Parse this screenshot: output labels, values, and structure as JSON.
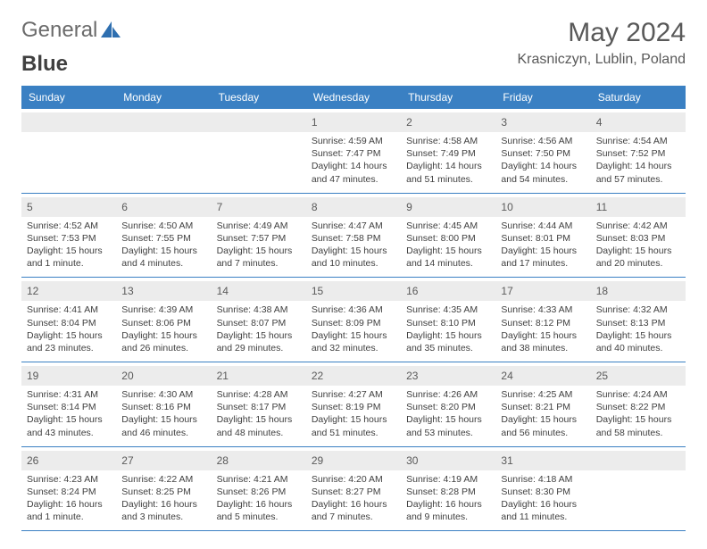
{
  "logo": {
    "text1": "General",
    "text2": "Blue"
  },
  "title": "May 2024",
  "location": "Krasniczyn, Lublin, Poland",
  "day_names": [
    "Sunday",
    "Monday",
    "Tuesday",
    "Wednesday",
    "Thursday",
    "Friday",
    "Saturday"
  ],
  "colors": {
    "header_bg": "#3a80c3",
    "header_text": "#ffffff",
    "daynum_bg": "#ececec",
    "border": "#3a80c3",
    "body_text": "#404040",
    "title_text": "#595959"
  },
  "weeks": [
    [
      {
        "n": "",
        "sr": "",
        "ss": "",
        "dl": ""
      },
      {
        "n": "",
        "sr": "",
        "ss": "",
        "dl": ""
      },
      {
        "n": "",
        "sr": "",
        "ss": "",
        "dl": ""
      },
      {
        "n": "1",
        "sr": "Sunrise: 4:59 AM",
        "ss": "Sunset: 7:47 PM",
        "dl": "Daylight: 14 hours and 47 minutes."
      },
      {
        "n": "2",
        "sr": "Sunrise: 4:58 AM",
        "ss": "Sunset: 7:49 PM",
        "dl": "Daylight: 14 hours and 51 minutes."
      },
      {
        "n": "3",
        "sr": "Sunrise: 4:56 AM",
        "ss": "Sunset: 7:50 PM",
        "dl": "Daylight: 14 hours and 54 minutes."
      },
      {
        "n": "4",
        "sr": "Sunrise: 4:54 AM",
        "ss": "Sunset: 7:52 PM",
        "dl": "Daylight: 14 hours and 57 minutes."
      }
    ],
    [
      {
        "n": "5",
        "sr": "Sunrise: 4:52 AM",
        "ss": "Sunset: 7:53 PM",
        "dl": "Daylight: 15 hours and 1 minute."
      },
      {
        "n": "6",
        "sr": "Sunrise: 4:50 AM",
        "ss": "Sunset: 7:55 PM",
        "dl": "Daylight: 15 hours and 4 minutes."
      },
      {
        "n": "7",
        "sr": "Sunrise: 4:49 AM",
        "ss": "Sunset: 7:57 PM",
        "dl": "Daylight: 15 hours and 7 minutes."
      },
      {
        "n": "8",
        "sr": "Sunrise: 4:47 AM",
        "ss": "Sunset: 7:58 PM",
        "dl": "Daylight: 15 hours and 10 minutes."
      },
      {
        "n": "9",
        "sr": "Sunrise: 4:45 AM",
        "ss": "Sunset: 8:00 PM",
        "dl": "Daylight: 15 hours and 14 minutes."
      },
      {
        "n": "10",
        "sr": "Sunrise: 4:44 AM",
        "ss": "Sunset: 8:01 PM",
        "dl": "Daylight: 15 hours and 17 minutes."
      },
      {
        "n": "11",
        "sr": "Sunrise: 4:42 AM",
        "ss": "Sunset: 8:03 PM",
        "dl": "Daylight: 15 hours and 20 minutes."
      }
    ],
    [
      {
        "n": "12",
        "sr": "Sunrise: 4:41 AM",
        "ss": "Sunset: 8:04 PM",
        "dl": "Daylight: 15 hours and 23 minutes."
      },
      {
        "n": "13",
        "sr": "Sunrise: 4:39 AM",
        "ss": "Sunset: 8:06 PM",
        "dl": "Daylight: 15 hours and 26 minutes."
      },
      {
        "n": "14",
        "sr": "Sunrise: 4:38 AM",
        "ss": "Sunset: 8:07 PM",
        "dl": "Daylight: 15 hours and 29 minutes."
      },
      {
        "n": "15",
        "sr": "Sunrise: 4:36 AM",
        "ss": "Sunset: 8:09 PM",
        "dl": "Daylight: 15 hours and 32 minutes."
      },
      {
        "n": "16",
        "sr": "Sunrise: 4:35 AM",
        "ss": "Sunset: 8:10 PM",
        "dl": "Daylight: 15 hours and 35 minutes."
      },
      {
        "n": "17",
        "sr": "Sunrise: 4:33 AM",
        "ss": "Sunset: 8:12 PM",
        "dl": "Daylight: 15 hours and 38 minutes."
      },
      {
        "n": "18",
        "sr": "Sunrise: 4:32 AM",
        "ss": "Sunset: 8:13 PM",
        "dl": "Daylight: 15 hours and 40 minutes."
      }
    ],
    [
      {
        "n": "19",
        "sr": "Sunrise: 4:31 AM",
        "ss": "Sunset: 8:14 PM",
        "dl": "Daylight: 15 hours and 43 minutes."
      },
      {
        "n": "20",
        "sr": "Sunrise: 4:30 AM",
        "ss": "Sunset: 8:16 PM",
        "dl": "Daylight: 15 hours and 46 minutes."
      },
      {
        "n": "21",
        "sr": "Sunrise: 4:28 AM",
        "ss": "Sunset: 8:17 PM",
        "dl": "Daylight: 15 hours and 48 minutes."
      },
      {
        "n": "22",
        "sr": "Sunrise: 4:27 AM",
        "ss": "Sunset: 8:19 PM",
        "dl": "Daylight: 15 hours and 51 minutes."
      },
      {
        "n": "23",
        "sr": "Sunrise: 4:26 AM",
        "ss": "Sunset: 8:20 PM",
        "dl": "Daylight: 15 hours and 53 minutes."
      },
      {
        "n": "24",
        "sr": "Sunrise: 4:25 AM",
        "ss": "Sunset: 8:21 PM",
        "dl": "Daylight: 15 hours and 56 minutes."
      },
      {
        "n": "25",
        "sr": "Sunrise: 4:24 AM",
        "ss": "Sunset: 8:22 PM",
        "dl": "Daylight: 15 hours and 58 minutes."
      }
    ],
    [
      {
        "n": "26",
        "sr": "Sunrise: 4:23 AM",
        "ss": "Sunset: 8:24 PM",
        "dl": "Daylight: 16 hours and 1 minute."
      },
      {
        "n": "27",
        "sr": "Sunrise: 4:22 AM",
        "ss": "Sunset: 8:25 PM",
        "dl": "Daylight: 16 hours and 3 minutes."
      },
      {
        "n": "28",
        "sr": "Sunrise: 4:21 AM",
        "ss": "Sunset: 8:26 PM",
        "dl": "Daylight: 16 hours and 5 minutes."
      },
      {
        "n": "29",
        "sr": "Sunrise: 4:20 AM",
        "ss": "Sunset: 8:27 PM",
        "dl": "Daylight: 16 hours and 7 minutes."
      },
      {
        "n": "30",
        "sr": "Sunrise: 4:19 AM",
        "ss": "Sunset: 8:28 PM",
        "dl": "Daylight: 16 hours and 9 minutes."
      },
      {
        "n": "31",
        "sr": "Sunrise: 4:18 AM",
        "ss": "Sunset: 8:30 PM",
        "dl": "Daylight: 16 hours and 11 minutes."
      },
      {
        "n": "",
        "sr": "",
        "ss": "",
        "dl": ""
      }
    ]
  ]
}
